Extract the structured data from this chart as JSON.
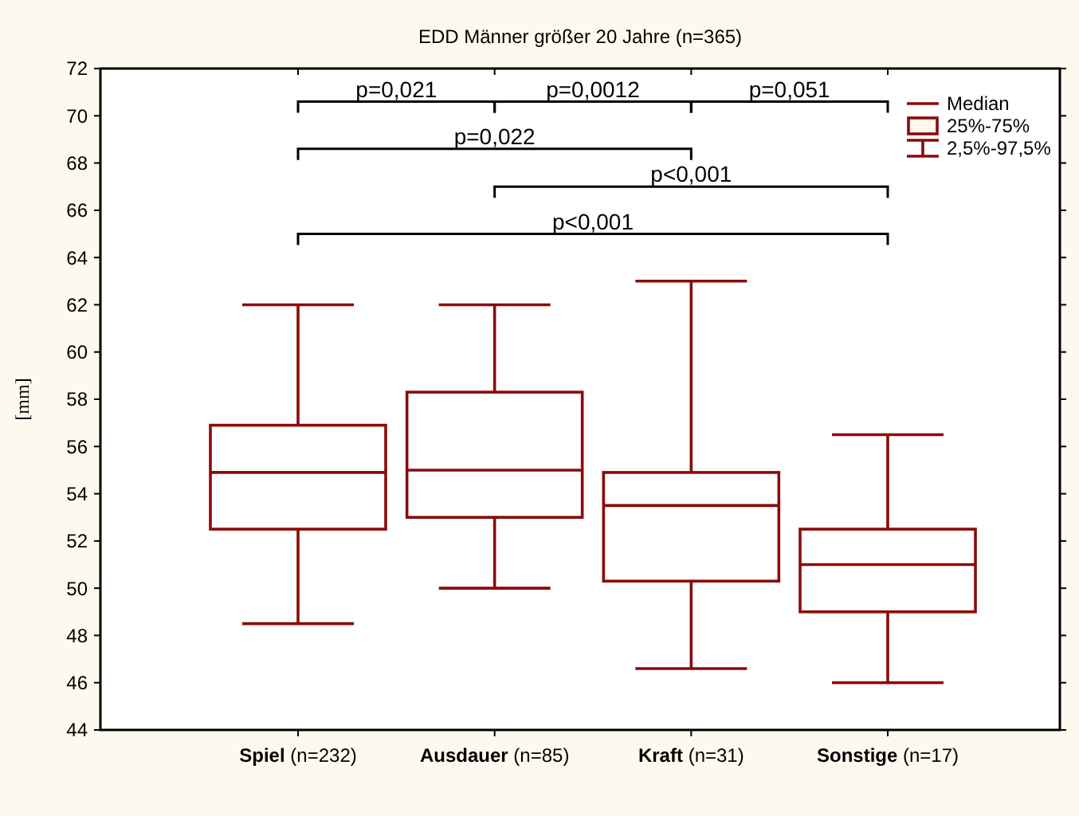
{
  "chart_data": {
    "type": "box",
    "title": "EDD Männer größer 20 Jahre (n=365)",
    "ylabel": "[mm]",
    "categories": [
      "Spiel (n=232)",
      "Ausdauer (n=85)",
      "Kraft (n=31)",
      "Sonstige (n=17)"
    ],
    "color": "#8b0a0a",
    "boxes": [
      {
        "low": 48.5,
        "q1": 52.5,
        "median": 54.9,
        "q3": 56.9,
        "high": 62
      },
      {
        "low": 50,
        "q1": 53,
        "median": 55,
        "q3": 58.3,
        "high": 62
      },
      {
        "low": 46.6,
        "q1": 50.3,
        "median": 53.5,
        "q3": 54.9,
        "high": 63
      },
      {
        "low": 46,
        "q1": 49,
        "median": 51,
        "q3": 52.5,
        "high": 56.5
      }
    ],
    "ylim": [
      44,
      72
    ],
    "yticks": [
      44,
      46,
      48,
      50,
      52,
      54,
      56,
      58,
      60,
      62,
      64,
      66,
      68,
      70,
      72
    ],
    "grid": false,
    "annotations": [
      "p=0,021",
      "p=0,0012",
      "p=0,051",
      "p=0,022",
      "p<0,001",
      "p<0,001",
      "Median",
      "25%-75%",
      "2,5%-97,5%"
    ]
  }
}
